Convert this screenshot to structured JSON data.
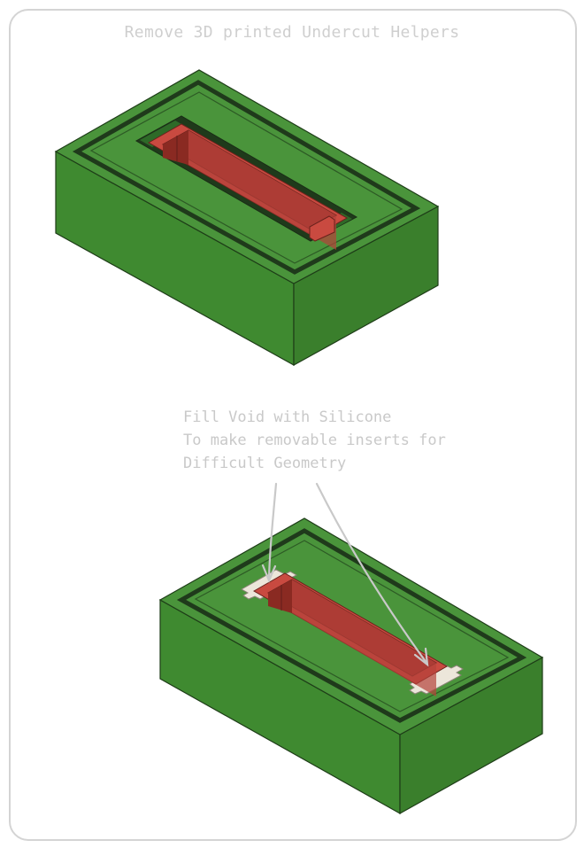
{
  "title": "Remove 3D printed Undercut Helpers",
  "annotation": {
    "lines": [
      "Fill Void with Silicone",
      "To make removable inserts for",
      "Difficult Geometry"
    ]
  },
  "colors": {
    "mold_top": "#4a943b",
    "mold_left": "#3f8a30",
    "mold_right": "#3a7f2c",
    "groove": "#1f3a1b",
    "cavity": "#b5423a",
    "cavity_dark": "#7f2a23",
    "silicone_insert": "#ece6da",
    "annotation": "#c9c9c9",
    "title": "#cfcfcf"
  }
}
